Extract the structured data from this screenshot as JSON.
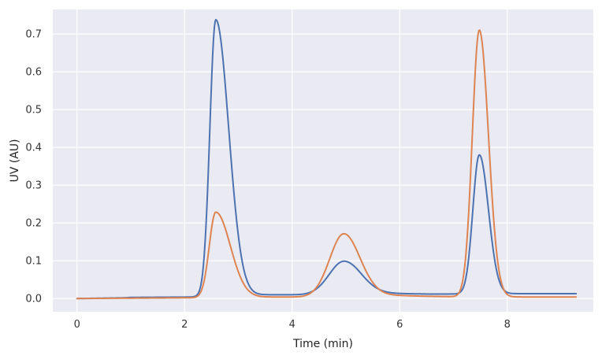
{
  "chart_data": {
    "type": "line",
    "title": "",
    "xlabel": "Time (min)",
    "ylabel": "UV (AU)",
    "xlim": [
      -0.45,
      9.6
    ],
    "ylim": [
      -0.035,
      0.765
    ],
    "xticks": [
      0,
      2,
      4,
      6,
      8
    ],
    "yticks": [
      0.0,
      0.1,
      0.2,
      0.3,
      0.4,
      0.5,
      0.6,
      0.7
    ],
    "xtick_labels": [
      "0",
      "2",
      "4",
      "6",
      "8"
    ],
    "ytick_labels": [
      "0.0",
      "0.1",
      "0.2",
      "0.3",
      "0.4",
      "0.5",
      "0.6",
      "0.7"
    ],
    "grid": true,
    "legend": "none",
    "plot_background": "#eaeaf2",
    "series": [
      {
        "color": "#4c72b0",
        "x_range": [
          0,
          9.28
        ],
        "baseline_points": [
          [
            0,
            0.0
          ],
          [
            0.9,
            0.002
          ],
          [
            1.0,
            0.003
          ],
          [
            2.1,
            0.004
          ],
          [
            3.5,
            0.01
          ],
          [
            4.2,
            0.01
          ],
          [
            5.2,
            0.015
          ],
          [
            6.5,
            0.012
          ],
          [
            7.0,
            0.012
          ],
          [
            8.2,
            0.013
          ],
          [
            9.28,
            0.013
          ]
        ],
        "peaks": [
          {
            "center": 2.58,
            "height": 0.732,
            "sigma_left": 0.11,
            "sigma_right": 0.24
          },
          {
            "center": 4.96,
            "height": 0.085,
            "sigma_left": 0.27,
            "sigma_right": 0.32
          },
          {
            "center": 7.48,
            "height": 0.368,
            "sigma_left": 0.12,
            "sigma_right": 0.17
          }
        ]
      },
      {
        "color": "#dd8452",
        "x_range": [
          0,
          9.28
        ],
        "baseline_points": [
          [
            0,
            0.0
          ],
          [
            1.0,
            0.001
          ],
          [
            2.1,
            0.002
          ],
          [
            3.5,
            0.004
          ],
          [
            4.2,
            0.004
          ],
          [
            5.5,
            0.01
          ],
          [
            6.5,
            0.006
          ],
          [
            7.0,
            0.005
          ],
          [
            8.5,
            0.004
          ],
          [
            9.28,
            0.004
          ]
        ],
        "peaks": [
          {
            "center": 2.58,
            "height": 0.226,
            "sigma_left": 0.12,
            "sigma_right": 0.27
          },
          {
            "center": 4.96,
            "height": 0.164,
            "sigma_left": 0.26,
            "sigma_right": 0.3
          },
          {
            "center": 7.48,
            "height": 0.706,
            "sigma_left": 0.13,
            "sigma_right": 0.17
          }
        ]
      }
    ]
  }
}
